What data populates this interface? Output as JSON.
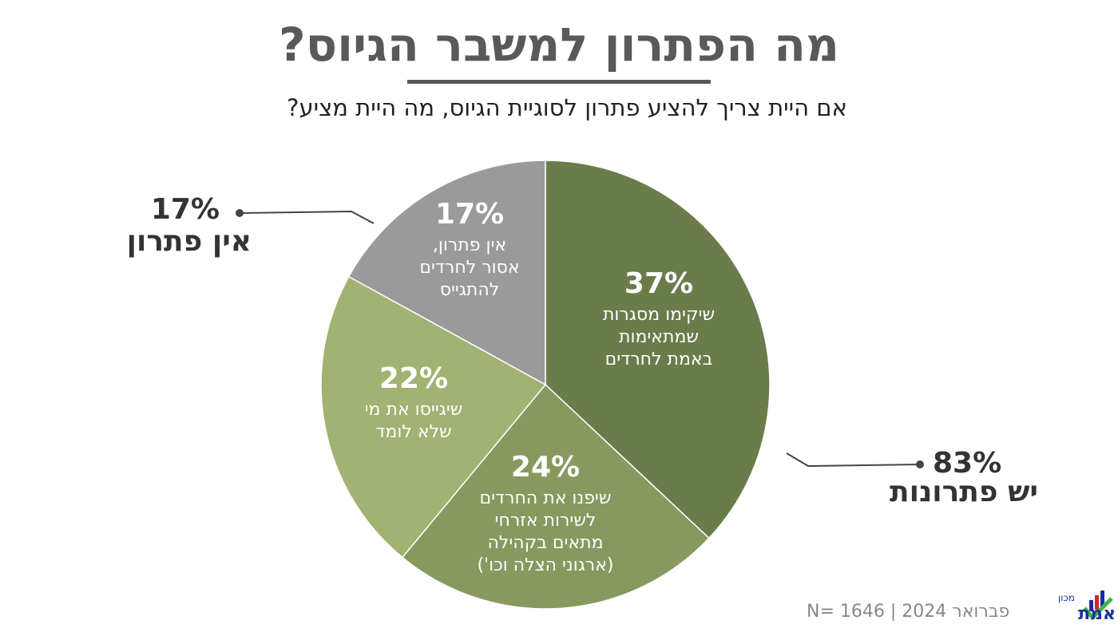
{
  "title": "מה הפתרון למשבר הגיוס?",
  "subtitle": "אם היית צריך להציע פתרון לסוגיית הגיוס, מה היית מציע?",
  "chart_data": {
    "type": "pie",
    "start": "top",
    "direction": "clockwise",
    "slices": [
      {
        "value": 37,
        "label": "37%",
        "text": [
          "שיקימו מסגרות",
          "שמתאימות",
          "באמת לחרדים"
        ],
        "color": "#6b7c4b"
      },
      {
        "value": 24,
        "label": "24%",
        "text": [
          "שיפנו את החרדים",
          "לשירות אזרחי",
          "מתאים בקהילה",
          "(ארגוני הצלה וכו')"
        ],
        "color": "#87995f"
      },
      {
        "value": 22,
        "label": "22%",
        "text": [
          "שיגייסו את מי",
          "שלא לומד"
        ],
        "color": "#a1b272"
      },
      {
        "value": 17,
        "label": "17%",
        "text": [
          "אין פתרון,",
          "אסור לחרדים",
          "להתגייס"
        ],
        "color": "#9a9a9a"
      }
    ],
    "annotations": [
      {
        "pct": "17%",
        "label": "אין פתרון"
      },
      {
        "pct": "83%",
        "label": "יש פתרונות"
      }
    ]
  },
  "footer": {
    "text": "פברואר 2024 | N= 1646"
  },
  "logo": {
    "small": "מכון",
    "name": "נתוני אמת"
  }
}
